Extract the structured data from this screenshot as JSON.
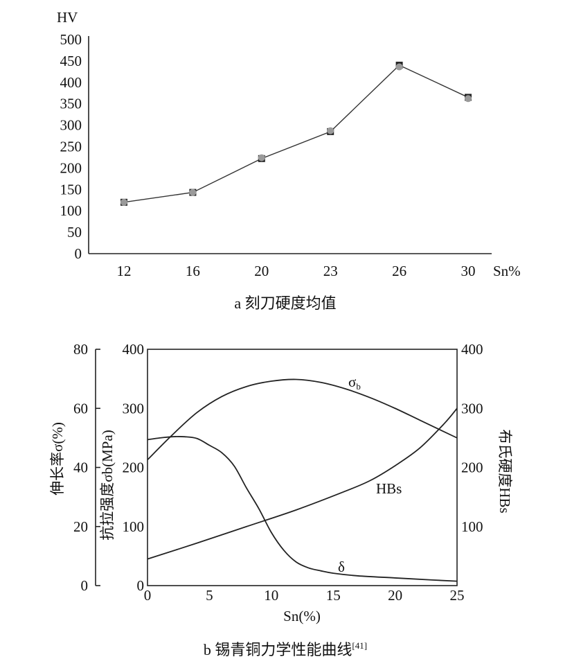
{
  "chart_data": [
    {
      "type": "line",
      "caption": "a 刻刀硬度均值",
      "ylabel": "HV",
      "xlabel": "Sn%",
      "categories": [
        "12",
        "16",
        "20",
        "23",
        "26",
        "30"
      ],
      "ylim": [
        0,
        500
      ],
      "yticks": [
        "0",
        "50",
        "100",
        "150",
        "200",
        "250",
        "300",
        "350",
        "400",
        "450",
        "500"
      ],
      "series": [
        {
          "marker": "square",
          "color": "#222222",
          "values": [
            120,
            143,
            222,
            285,
            440,
            365
          ]
        },
        {
          "marker": "circle",
          "color": "#9a9a9a",
          "values": [
            120,
            143,
            224,
            287,
            436,
            362
          ]
        }
      ]
    },
    {
      "type": "line",
      "caption": "b 锡青铜力学性能曲线",
      "caption_ref": "[41]",
      "xlabel": "Sn(%)",
      "xlim": [
        0,
        25
      ],
      "xticks": [
        "0",
        "5",
        "10",
        "15",
        "20",
        "25"
      ],
      "axes": {
        "left_outer": {
          "label": "伸长率σ(%)",
          "range": [
            0,
            80
          ],
          "ticks": [
            "0",
            "20",
            "40",
            "60",
            "80"
          ]
        },
        "left_inner": {
          "label": "抗拉强度σb(MPa)",
          "range": [
            0,
            400
          ],
          "ticks": [
            "0",
            "100",
            "200",
            "300",
            "400"
          ]
        },
        "right": {
          "label": "布氏硬度HBs",
          "range": [
            0,
            400
          ],
          "ticks": [
            "100",
            "200",
            "300",
            "400"
          ]
        }
      },
      "series": [
        {
          "name": "σb",
          "label_main": "σ",
          "label_sub": "b",
          "axis": "left_inner",
          "x": [
            0,
            2,
            4,
            6,
            8,
            10,
            12,
            14,
            16,
            18,
            20,
            22,
            25
          ],
          "y": [
            213,
            255,
            293,
            320,
            337,
            346,
            349,
            344,
            333,
            318,
            300,
            280,
            250
          ]
        },
        {
          "name": "HBs",
          "label_main": "HBs",
          "axis": "right",
          "x": [
            0,
            4,
            8,
            12,
            16,
            18,
            20,
            22,
            24,
            25
          ],
          "y": [
            45,
            72,
            100,
            128,
            160,
            178,
            203,
            233,
            275,
            300
          ]
        },
        {
          "name": "δ",
          "label_main": "δ",
          "axis": "left_outer",
          "x": [
            0,
            1,
            2,
            3,
            4,
            5,
            6,
            7,
            8,
            9,
            10,
            11,
            12,
            13,
            14,
            15,
            17,
            20,
            23,
            25
          ],
          "y": [
            49.4,
            50,
            50.4,
            50.4,
            49.8,
            47.5,
            45,
            40.5,
            33,
            26,
            18,
            12,
            8,
            6,
            5,
            4.2,
            3.3,
            2.6,
            1.9,
            1.5
          ]
        }
      ]
    }
  ]
}
